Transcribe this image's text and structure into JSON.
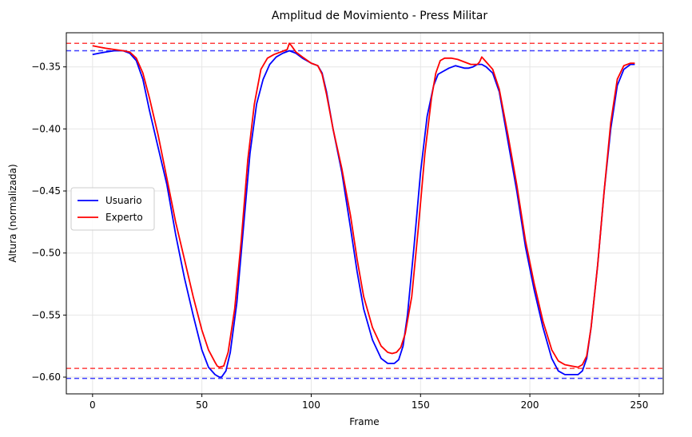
{
  "chart_data": {
    "type": "line",
    "title": "Amplitud de Movimiento - Press Militar",
    "xlabel": "Frame",
    "ylabel": "Altura (normalizada)",
    "xlim": [
      -12,
      261
    ],
    "ylim": [
      -0.6135,
      -0.3225
    ],
    "xticks": [
      0,
      50,
      100,
      150,
      200,
      250
    ],
    "xtick_labels": [
      "0",
      "50",
      "100",
      "150",
      "200",
      "250"
    ],
    "yticks": [
      -0.6,
      -0.55,
      -0.5,
      -0.45,
      -0.4,
      -0.35
    ],
    "ytick_labels": [
      "−0.60",
      "−0.55",
      "−0.50",
      "−0.45",
      "−0.40",
      "−0.35"
    ],
    "grid": true,
    "legend_position": "center-left",
    "series": [
      {
        "name": "Usuario",
        "color": "#0000ff",
        "x": [
          0,
          3,
          6,
          10,
          14,
          17,
          20,
          23,
          26,
          30,
          34,
          38,
          42,
          46,
          50,
          53,
          56,
          58,
          59,
          61,
          63,
          66,
          69,
          72,
          75,
          78,
          81,
          84,
          87,
          90,
          93,
          96,
          100,
          103,
          105,
          107,
          110,
          114,
          118,
          121,
          124,
          128,
          132,
          135,
          138,
          140,
          142,
          144,
          147,
          150,
          153,
          156,
          158,
          160,
          163,
          166,
          168,
          170,
          172,
          174,
          176,
          178,
          180,
          183,
          186,
          190,
          194,
          198,
          202,
          206,
          210,
          213,
          216,
          219,
          222,
          224,
          226,
          228,
          231,
          234,
          237,
          240,
          243,
          246,
          248
        ],
        "values": [
          -0.34,
          -0.339,
          -0.338,
          -0.337,
          -0.337,
          -0.339,
          -0.345,
          -0.36,
          -0.385,
          -0.415,
          -0.445,
          -0.485,
          -0.52,
          -0.55,
          -0.578,
          -0.592,
          -0.598,
          -0.6,
          -0.6,
          -0.595,
          -0.58,
          -0.54,
          -0.48,
          -0.42,
          -0.38,
          -0.36,
          -0.348,
          -0.342,
          -0.339,
          -0.337,
          -0.339,
          -0.343,
          -0.347,
          -0.349,
          -0.355,
          -0.37,
          -0.4,
          -0.435,
          -0.48,
          -0.515,
          -0.545,
          -0.57,
          -0.585,
          -0.589,
          -0.589,
          -0.586,
          -0.575,
          -0.55,
          -0.495,
          -0.435,
          -0.39,
          -0.365,
          -0.356,
          -0.354,
          -0.351,
          -0.349,
          -0.35,
          -0.351,
          -0.351,
          -0.35,
          -0.348,
          -0.348,
          -0.35,
          -0.355,
          -0.37,
          -0.41,
          -0.45,
          -0.495,
          -0.53,
          -0.56,
          -0.585,
          -0.595,
          -0.598,
          -0.598,
          -0.598,
          -0.595,
          -0.585,
          -0.56,
          -0.51,
          -0.45,
          -0.4,
          -0.365,
          -0.352,
          -0.348,
          -0.348
        ]
      },
      {
        "name": "Experto",
        "color": "#ff0000",
        "x": [
          0,
          3,
          6,
          10,
          14,
          17,
          20,
          23,
          26,
          30,
          34,
          38,
          42,
          46,
          50,
          53,
          56,
          57,
          58,
          60,
          62,
          65,
          68,
          71,
          74,
          77,
          80,
          83,
          86,
          89,
          90,
          91,
          93,
          96,
          100,
          103,
          105,
          107,
          110,
          114,
          118,
          121,
          124,
          128,
          132,
          135,
          137,
          139,
          141,
          143,
          146,
          149,
          152,
          155,
          157,
          159,
          161,
          164,
          167,
          170,
          173,
          176,
          177,
          178,
          180,
          183,
          186,
          190,
          194,
          198,
          202,
          206,
          210,
          213,
          216,
          219,
          222,
          224,
          226,
          228,
          231,
          234,
          237,
          240,
          243,
          246,
          248
        ],
        "values": [
          -0.333,
          -0.334,
          -0.335,
          -0.336,
          -0.337,
          -0.338,
          -0.343,
          -0.355,
          -0.375,
          -0.405,
          -0.44,
          -0.475,
          -0.505,
          -0.535,
          -0.562,
          -0.578,
          -0.588,
          -0.591,
          -0.592,
          -0.591,
          -0.58,
          -0.545,
          -0.49,
          -0.425,
          -0.38,
          -0.352,
          -0.343,
          -0.34,
          -0.338,
          -0.336,
          -0.331,
          -0.333,
          -0.338,
          -0.342,
          -0.347,
          -0.349,
          -0.356,
          -0.372,
          -0.4,
          -0.432,
          -0.47,
          -0.505,
          -0.535,
          -0.56,
          -0.575,
          -0.58,
          -0.581,
          -0.58,
          -0.576,
          -0.565,
          -0.535,
          -0.48,
          -0.42,
          -0.375,
          -0.355,
          -0.345,
          -0.343,
          -0.343,
          -0.344,
          -0.346,
          -0.348,
          -0.348,
          -0.346,
          -0.342,
          -0.346,
          -0.352,
          -0.368,
          -0.405,
          -0.445,
          -0.49,
          -0.525,
          -0.555,
          -0.578,
          -0.587,
          -0.59,
          -0.591,
          -0.592,
          -0.59,
          -0.583,
          -0.56,
          -0.51,
          -0.45,
          -0.395,
          -0.36,
          -0.349,
          -0.347,
          -0.347
        ]
      }
    ],
    "reference_lines": [
      {
        "y": -0.331,
        "color": "#ff0000",
        "style": "dashed"
      },
      {
        "y": -0.337,
        "color": "#0000ff",
        "style": "dashed"
      },
      {
        "y": -0.593,
        "color": "#ff0000",
        "style": "dashed"
      },
      {
        "y": -0.601,
        "color": "#0000ff",
        "style": "dashed"
      }
    ]
  }
}
